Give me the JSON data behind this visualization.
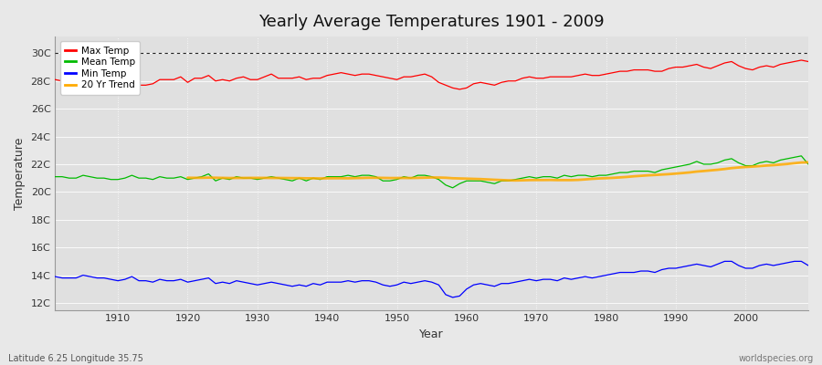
{
  "title": "Yearly Average Temperatures 1901 - 2009",
  "xlabel": "Year",
  "ylabel": "Temperature",
  "years_start": 1901,
  "years_end": 2009,
  "fig_facecolor": "#e8e8e8",
  "ax_facecolor": "#e0e0e0",
  "grid_color": "#ffffff",
  "yticks": [
    12,
    14,
    16,
    18,
    20,
    22,
    24,
    26,
    28,
    30
  ],
  "ytick_labels": [
    "12C",
    "14C",
    "16C",
    "18C",
    "20C",
    "22C",
    "24C",
    "26C",
    "28C",
    "30C"
  ],
  "ylim": [
    11.5,
    31.2
  ],
  "xlim": [
    1901,
    2009
  ],
  "max_temp_color": "#ff0000",
  "mean_temp_color": "#00bb00",
  "min_temp_color": "#0000ff",
  "trend_color": "#ffaa00",
  "dotted_line_y": 30,
  "footer_left": "Latitude 6.25 Longitude 35.75",
  "footer_right": "worldspecies.org",
  "xticks": [
    1910,
    1920,
    1930,
    1940,
    1950,
    1960,
    1970,
    1980,
    1990,
    2000
  ],
  "max_temp_data": [
    28.1,
    28.0,
    28.1,
    28.1,
    28.3,
    28.3,
    28.2,
    28.1,
    27.9,
    27.8,
    28.0,
    28.0,
    27.7,
    27.7,
    27.8,
    28.1,
    28.1,
    28.1,
    28.3,
    27.9,
    28.2,
    28.2,
    28.4,
    28.0,
    28.1,
    28.0,
    28.2,
    28.3,
    28.1,
    28.1,
    28.3,
    28.5,
    28.2,
    28.2,
    28.2,
    28.3,
    28.1,
    28.2,
    28.2,
    28.4,
    28.5,
    28.6,
    28.5,
    28.4,
    28.5,
    28.5,
    28.4,
    28.3,
    28.2,
    28.1,
    28.3,
    28.3,
    28.4,
    28.5,
    28.3,
    27.9,
    27.7,
    27.5,
    27.4,
    27.5,
    27.8,
    27.9,
    27.8,
    27.7,
    27.9,
    28.0,
    28.0,
    28.2,
    28.3,
    28.2,
    28.2,
    28.3,
    28.3,
    28.3,
    28.3,
    28.4,
    28.5,
    28.4,
    28.4,
    28.5,
    28.6,
    28.7,
    28.7,
    28.8,
    28.8,
    28.8,
    28.7,
    28.7,
    28.9,
    29.0,
    29.0,
    29.1,
    29.2,
    29.0,
    28.9,
    29.1,
    29.3,
    29.4,
    29.1,
    28.9,
    28.8,
    29.0,
    29.1,
    29.0,
    29.2,
    29.3,
    29.4,
    29.5,
    29.4
  ],
  "mean_temp_data": [
    21.1,
    21.1,
    21.0,
    21.0,
    21.2,
    21.1,
    21.0,
    21.0,
    20.9,
    20.9,
    21.0,
    21.2,
    21.0,
    21.0,
    20.9,
    21.1,
    21.0,
    21.0,
    21.1,
    20.9,
    21.0,
    21.1,
    21.3,
    20.8,
    21.0,
    20.9,
    21.1,
    21.0,
    21.0,
    20.9,
    21.0,
    21.1,
    21.0,
    20.9,
    20.8,
    21.0,
    20.8,
    21.0,
    20.9,
    21.1,
    21.1,
    21.1,
    21.2,
    21.1,
    21.2,
    21.2,
    21.1,
    20.8,
    20.8,
    20.9,
    21.1,
    21.0,
    21.2,
    21.2,
    21.1,
    20.9,
    20.5,
    20.3,
    20.6,
    20.8,
    20.8,
    20.8,
    20.7,
    20.6,
    20.8,
    20.8,
    20.9,
    21.0,
    21.1,
    21.0,
    21.1,
    21.1,
    21.0,
    21.2,
    21.1,
    21.2,
    21.2,
    21.1,
    21.2,
    21.2,
    21.3,
    21.4,
    21.4,
    21.5,
    21.5,
    21.5,
    21.4,
    21.6,
    21.7,
    21.8,
    21.9,
    22.0,
    22.2,
    22.0,
    22.0,
    22.1,
    22.3,
    22.4,
    22.1,
    21.9,
    21.9,
    22.1,
    22.2,
    22.1,
    22.3,
    22.4,
    22.5,
    22.6,
    22.0
  ],
  "min_temp_data": [
    13.9,
    13.8,
    13.8,
    13.8,
    14.0,
    13.9,
    13.8,
    13.8,
    13.7,
    13.6,
    13.7,
    13.9,
    13.6,
    13.6,
    13.5,
    13.7,
    13.6,
    13.6,
    13.7,
    13.5,
    13.6,
    13.7,
    13.8,
    13.4,
    13.5,
    13.4,
    13.6,
    13.5,
    13.4,
    13.3,
    13.4,
    13.5,
    13.4,
    13.3,
    13.2,
    13.3,
    13.2,
    13.4,
    13.3,
    13.5,
    13.5,
    13.5,
    13.6,
    13.5,
    13.6,
    13.6,
    13.5,
    13.3,
    13.2,
    13.3,
    13.5,
    13.4,
    13.5,
    13.6,
    13.5,
    13.3,
    12.6,
    12.4,
    12.5,
    13.0,
    13.3,
    13.4,
    13.3,
    13.2,
    13.4,
    13.4,
    13.5,
    13.6,
    13.7,
    13.6,
    13.7,
    13.7,
    13.6,
    13.8,
    13.7,
    13.8,
    13.9,
    13.8,
    13.9,
    14.0,
    14.1,
    14.2,
    14.2,
    14.2,
    14.3,
    14.3,
    14.2,
    14.4,
    14.5,
    14.5,
    14.6,
    14.7,
    14.8,
    14.7,
    14.6,
    14.8,
    15.0,
    15.0,
    14.7,
    14.5,
    14.5,
    14.7,
    14.8,
    14.7,
    14.8,
    14.9,
    15.0,
    15.0,
    14.7
  ]
}
